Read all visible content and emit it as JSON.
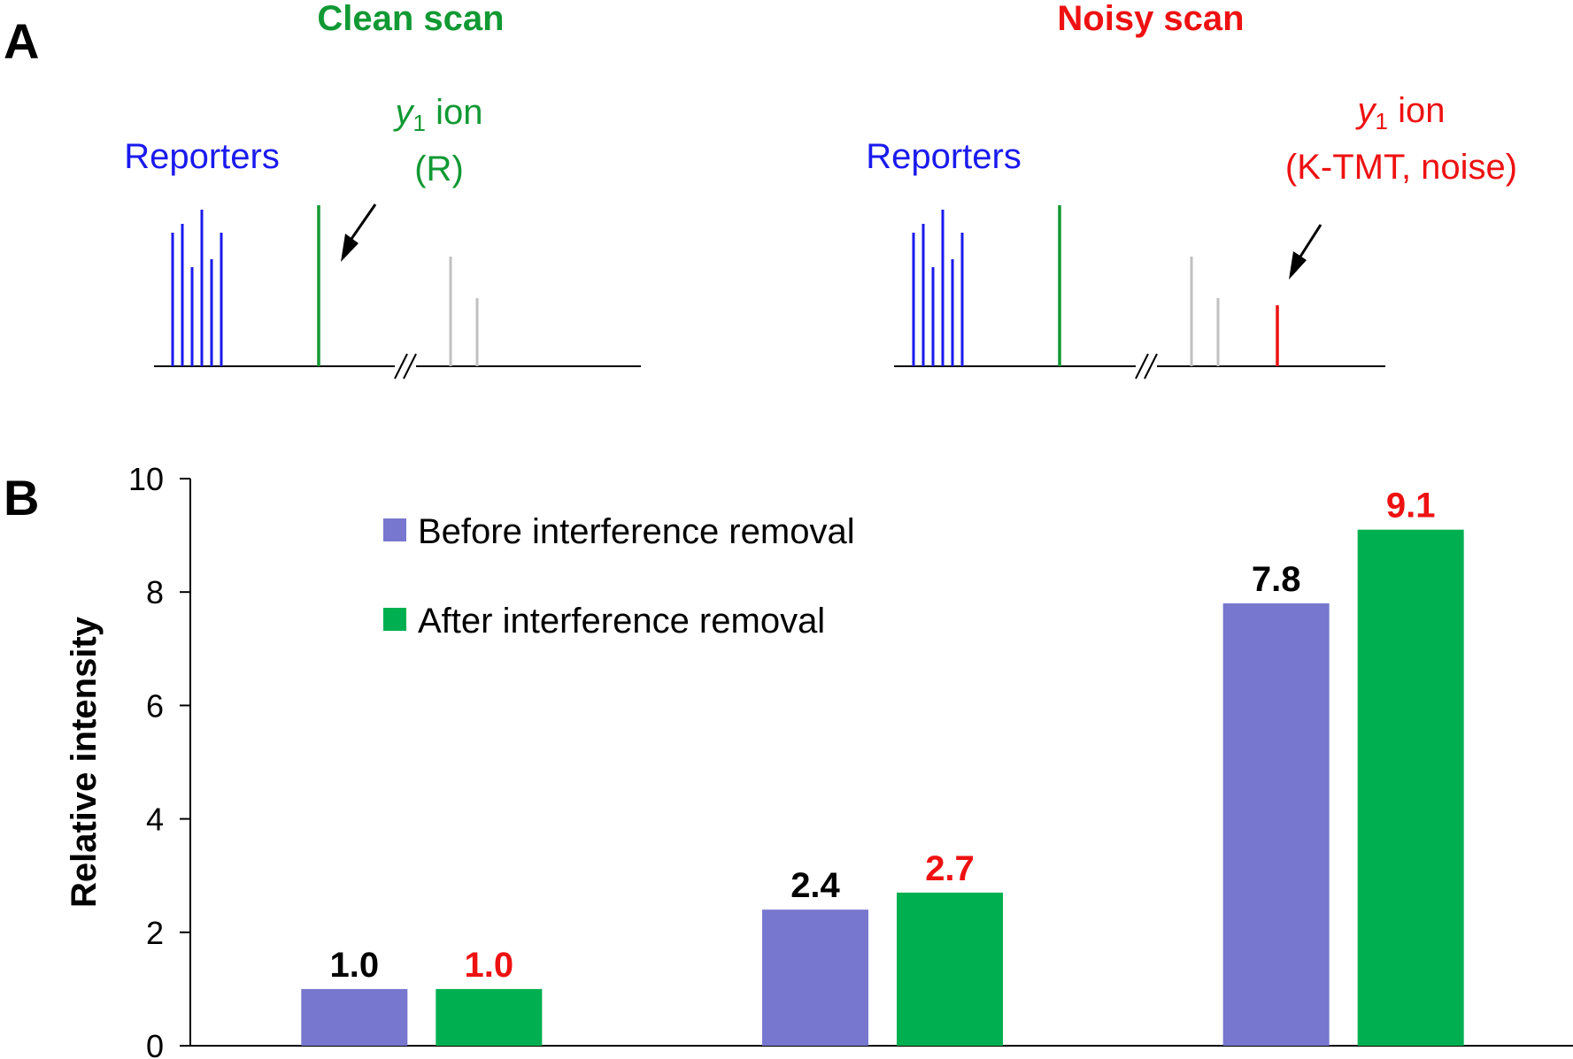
{
  "panel_a": {
    "letter": "A",
    "clean_scan": {
      "title": "Clean scan",
      "title_color": "#119933",
      "reporters_label": "Reporters",
      "reporters_color": "#1a1aee",
      "y1_label_italic": "y",
      "y1_label_sub": "1",
      "y1_label_rest": " ion",
      "y1_note": "(R)",
      "y1_color": "#119933"
    },
    "noisy_scan": {
      "title": "Noisy scan",
      "title_color": "#ee1111",
      "reporters_label": "Reporters",
      "reporters_color": "#1a1aee",
      "y1_label_italic": "y",
      "y1_label_sub": "1",
      "y1_label_rest": " ion",
      "y1_note": "(K-TMT, noise)",
      "y1_color": "#ee1111"
    },
    "colors": {
      "reporter_peaks": "#1a1aee",
      "y1_r_peak": "#119933",
      "other_peaks": "#c0c0c0",
      "y1_noise_peak": "#ee1111"
    }
  },
  "panel_b": {
    "letter": "B"
  },
  "chart_data": {
    "type": "bar",
    "categories": [
      "",
      "",
      ""
    ],
    "ylabel": "Relative intensity",
    "xlabel": "",
    "ylim": [
      0,
      10
    ],
    "yticks": [
      0,
      2,
      4,
      6,
      8,
      10
    ],
    "grid": false,
    "legend_placement": "top-left",
    "series": [
      {
        "name": "Before interference removal",
        "color": "#7777cf",
        "label_color": "#000000",
        "values": [
          1.0,
          2.4,
          7.8
        ],
        "labels": [
          "1.0",
          "2.4",
          "7.8"
        ]
      },
      {
        "name": "After interference removal",
        "color": "#00b050",
        "label_color": "#ee1111",
        "values": [
          1.0,
          2.7,
          9.1
        ],
        "labels": [
          "1.0",
          "2.7",
          "9.1"
        ]
      }
    ]
  }
}
